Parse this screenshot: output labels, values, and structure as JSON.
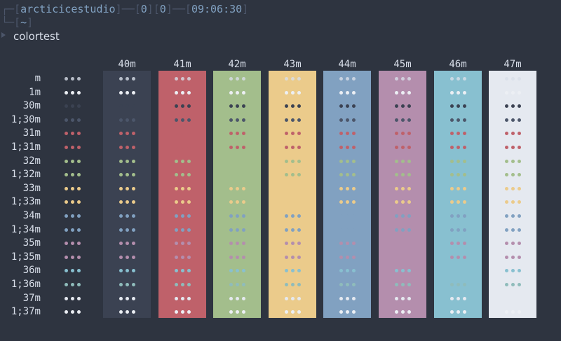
{
  "prompt": {
    "user": "arcticicestudio",
    "jobs_a": "0",
    "jobs_b": "0",
    "time": "09:06:30",
    "cwd": "~",
    "command": "colortest"
  },
  "colortest": {
    "columns": [
      {
        "label": "40m",
        "bg": "#3b4252"
      },
      {
        "label": "41m",
        "bg": "#bf616a"
      },
      {
        "label": "42m",
        "bg": "#a3be8c"
      },
      {
        "label": "43m",
        "bg": "#ebcb8b"
      },
      {
        "label": "44m",
        "bg": "#81a1c1"
      },
      {
        "label": "45m",
        "bg": "#b48ead"
      },
      {
        "label": "46m",
        "bg": "#88c0d0"
      },
      {
        "label": "47m",
        "bg": "#e5e9f0"
      }
    ],
    "rows": [
      {
        "label": "m",
        "fg": "#d8dee9"
      },
      {
        "label": "1m",
        "fg": "#eceff4"
      },
      {
        "label": "30m",
        "fg": "#3b4252"
      },
      {
        "label": "1;30m",
        "fg": "#4c566a"
      },
      {
        "label": "31m",
        "fg": "#bf616a"
      },
      {
        "label": "1;31m",
        "fg": "#bf616a"
      },
      {
        "label": "32m",
        "fg": "#a3be8c"
      },
      {
        "label": "1;32m",
        "fg": "#a3be8c"
      },
      {
        "label": "33m",
        "fg": "#ebcb8b"
      },
      {
        "label": "1;33m",
        "fg": "#ebcb8b"
      },
      {
        "label": "34m",
        "fg": "#81a1c1"
      },
      {
        "label": "1;34m",
        "fg": "#81a1c1"
      },
      {
        "label": "35m",
        "fg": "#b48ead"
      },
      {
        "label": "1;35m",
        "fg": "#b48ead"
      },
      {
        "label": "36m",
        "fg": "#88c0d0"
      },
      {
        "label": "1;36m",
        "fg": "#8fbcbb"
      },
      {
        "label": "37m",
        "fg": "#e5e9f0"
      },
      {
        "label": "1;37m",
        "fg": "#eceff4"
      }
    ],
    "sample_glyph": "•••"
  },
  "colors": {
    "background": "#2e3440",
    "foreground": "#d8dee9",
    "prompt_frame": "#4c566a",
    "prompt_text": "#81a1c1"
  }
}
